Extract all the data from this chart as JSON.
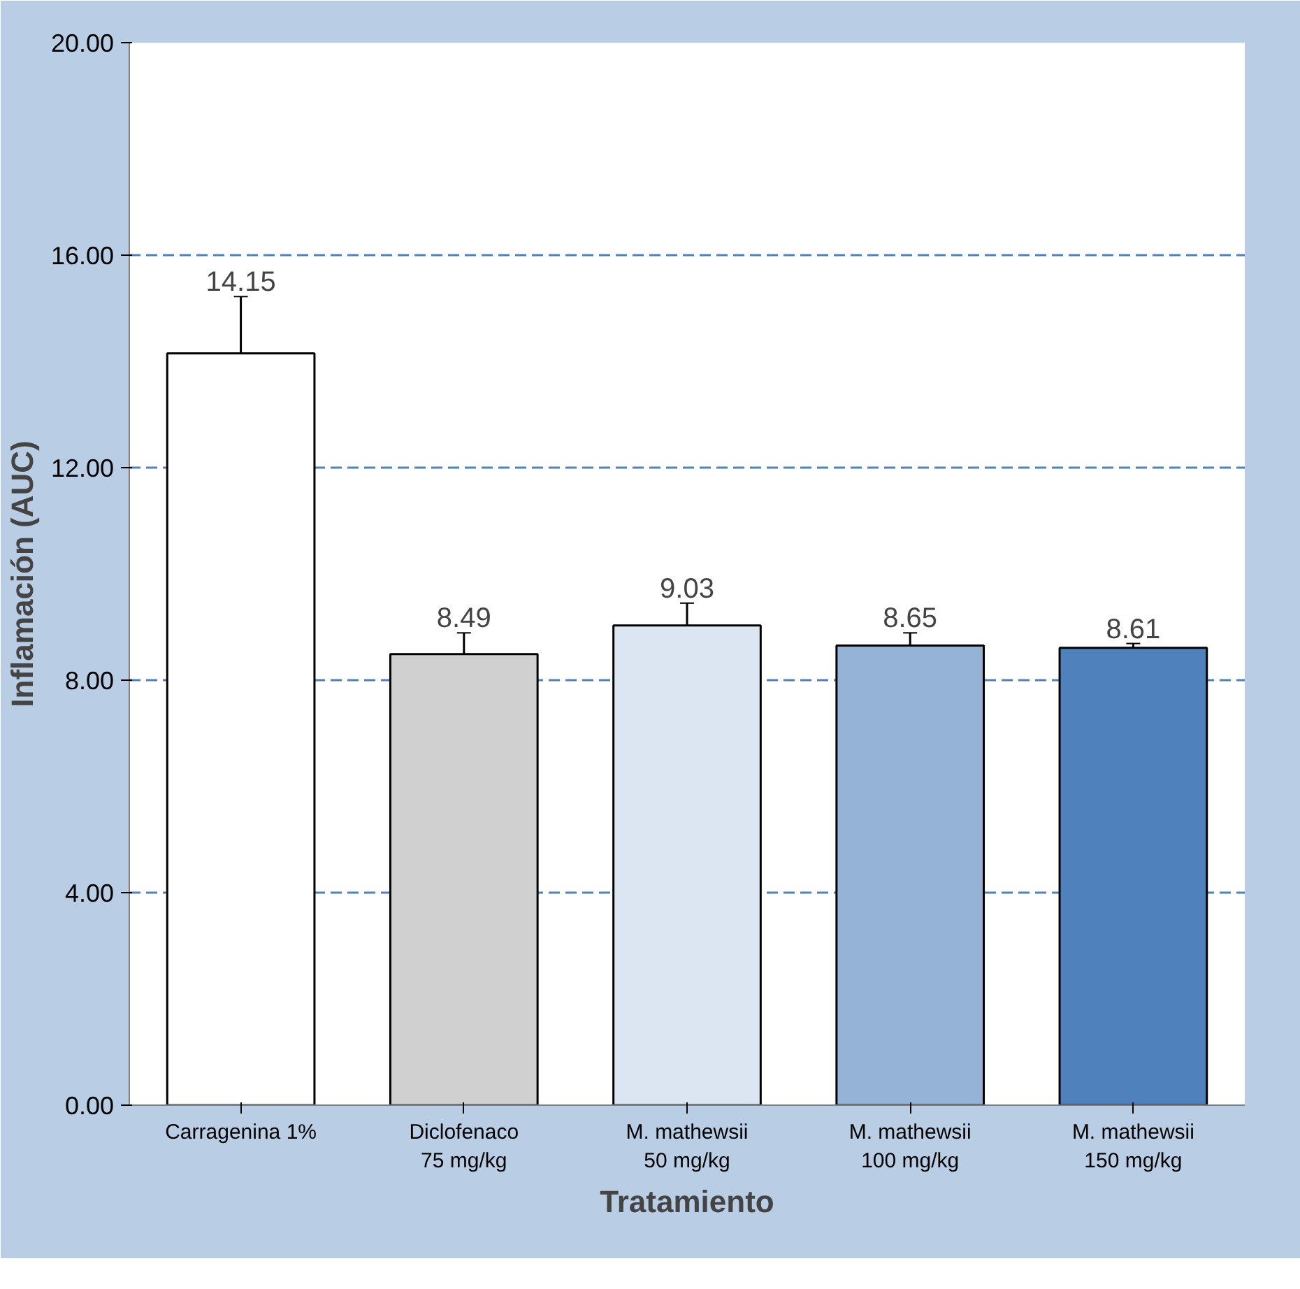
{
  "chart_data": {
    "type": "bar",
    "xlabel": "Tratamiento",
    "ylabel": "Inflamación (AUC)",
    "categories": [
      "Carragenina 1%",
      "Diclofenaco\n75 mg/kg",
      "M. mathewsii\n50 mg/kg",
      "M. mathewsii\n100 mg/kg",
      "M. mathewsii\n150 mg/kg"
    ],
    "values": [
      14.15,
      8.49,
      9.03,
      8.65,
      8.61
    ],
    "colors": [
      "#ffffff",
      "#d0d0d0",
      "#dce6f2",
      "#95b3d7",
      "#4f81bd"
    ],
    "errors": [
      1.07,
      0.4,
      0.42,
      0.24,
      0.08
    ],
    "ylim": [
      0,
      20
    ],
    "yticks": [
      {
        "value": 0,
        "label": "0.00"
      },
      {
        "value": 4,
        "label": "4.00"
      },
      {
        "value": 8,
        "label": "8.00"
      },
      {
        "value": 12,
        "label": "12.00"
      },
      {
        "value": 16,
        "label": "16.00"
      },
      {
        "value": 20,
        "label": "20.00"
      }
    ],
    "grid": "y",
    "data_labels": true
  }
}
